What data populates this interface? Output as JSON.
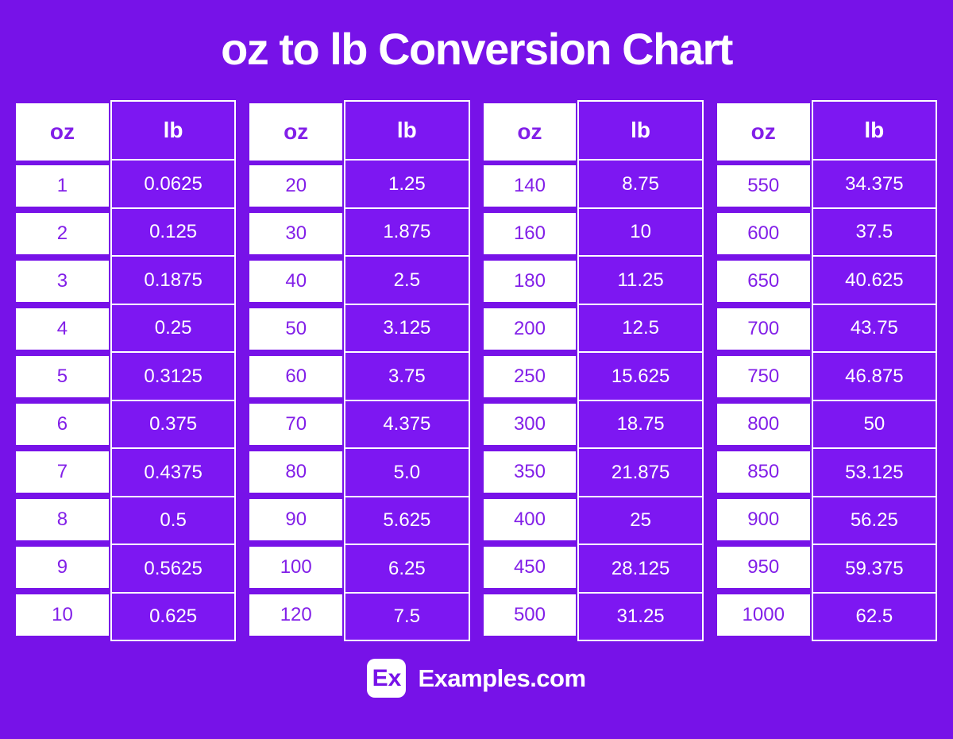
{
  "chart_data": {
    "type": "table",
    "title": "oz to lb Conversion Chart",
    "columns": [
      "oz",
      "lb"
    ],
    "tables": [
      {
        "rows": [
          {
            "oz": "1",
            "lb": "0.0625"
          },
          {
            "oz": "2",
            "lb": "0.125"
          },
          {
            "oz": "3",
            "lb": "0.1875"
          },
          {
            "oz": "4",
            "lb": "0.25"
          },
          {
            "oz": "5",
            "lb": "0.3125"
          },
          {
            "oz": "6",
            "lb": "0.375"
          },
          {
            "oz": "7",
            "lb": "0.4375"
          },
          {
            "oz": "8",
            "lb": "0.5"
          },
          {
            "oz": "9",
            "lb": "0.5625"
          },
          {
            "oz": "10",
            "lb": "0.625"
          }
        ]
      },
      {
        "rows": [
          {
            "oz": "20",
            "lb": "1.25"
          },
          {
            "oz": "30",
            "lb": "1.875"
          },
          {
            "oz": "40",
            "lb": "2.5"
          },
          {
            "oz": "50",
            "lb": "3.125"
          },
          {
            "oz": "60",
            "lb": "3.75"
          },
          {
            "oz": "70",
            "lb": "4.375"
          },
          {
            "oz": "80",
            "lb": "5.0"
          },
          {
            "oz": "90",
            "lb": "5.625"
          },
          {
            "oz": "100",
            "lb": "6.25"
          },
          {
            "oz": "120",
            "lb": "7.5"
          }
        ]
      },
      {
        "rows": [
          {
            "oz": "140",
            "lb": "8.75"
          },
          {
            "oz": "160",
            "lb": "10"
          },
          {
            "oz": "180",
            "lb": "11.25"
          },
          {
            "oz": "200",
            "lb": "12.5"
          },
          {
            "oz": "250",
            "lb": "15.625"
          },
          {
            "oz": "300",
            "lb": "18.75"
          },
          {
            "oz": "350",
            "lb": "21.875"
          },
          {
            "oz": "400",
            "lb": "25"
          },
          {
            "oz": "450",
            "lb": "28.125"
          },
          {
            "oz": "500",
            "lb": "31.25"
          }
        ]
      },
      {
        "rows": [
          {
            "oz": "550",
            "lb": "34.375"
          },
          {
            "oz": "600",
            "lb": "37.5"
          },
          {
            "oz": "650",
            "lb": "40.625"
          },
          {
            "oz": "700",
            "lb": "43.75"
          },
          {
            "oz": "750",
            "lb": "46.875"
          },
          {
            "oz": "800",
            "lb": "50"
          },
          {
            "oz": "850",
            "lb": "53.125"
          },
          {
            "oz": "900",
            "lb": "56.25"
          },
          {
            "oz": "950",
            "lb": "59.375"
          },
          {
            "oz": "1000",
            "lb": "62.5"
          }
        ]
      }
    ]
  },
  "footer": {
    "logo_text": "Ex",
    "site_name": "Examples.com"
  },
  "colors": {
    "background": "#7712E8",
    "lb_cell_fill": "#7D17F2",
    "purple_text": "#821FE8",
    "white": "#FFFFFF"
  }
}
